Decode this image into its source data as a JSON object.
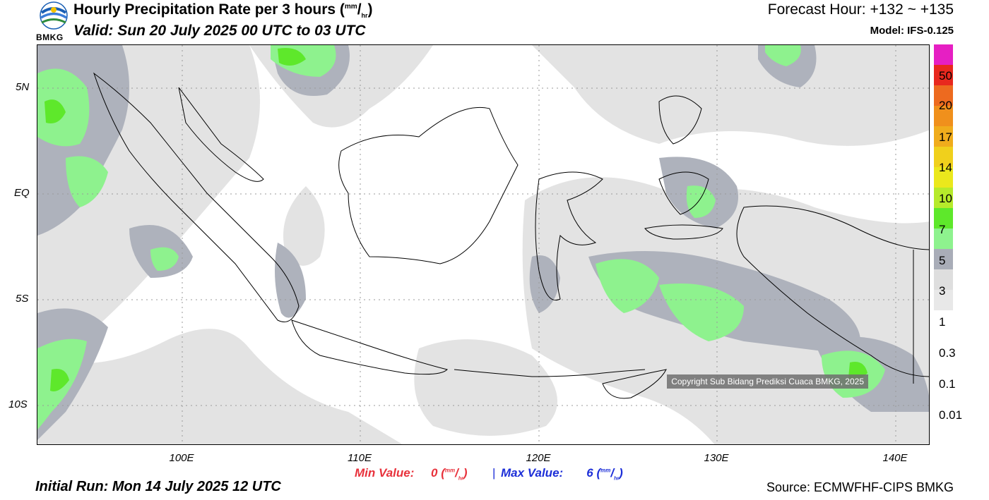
{
  "header": {
    "title_main": "Hourly Precipitation Rate per 3 hours (",
    "title_unit_num": "mm",
    "title_unit_sep": "/",
    "title_unit_den": "hr",
    "title_close": ")",
    "valid": "Valid: Sun 20 July 2025 00 UTC to 03 UTC",
    "forecast_hour": "Forecast Hour: +132 ~ +135",
    "model": "Model: IFS-0.125"
  },
  "logo": {
    "text": "BMKG",
    "icon": "bmkg-logo-icon"
  },
  "axes": {
    "lat_labels": [
      "5N",
      "EQ",
      "5S",
      "10S"
    ],
    "lon_labels": [
      "100E",
      "110E",
      "120E",
      "130E",
      "140E"
    ]
  },
  "legend": {
    "labels": [
      "50",
      "20",
      "17",
      "14",
      "10",
      "7",
      "5",
      "3",
      "1",
      "0.3",
      "0.1",
      "0.01"
    ],
    "colors": [
      "#e61fc3",
      "#e8281e",
      "#ed6a1f",
      "#f0901c",
      "#f0ac1c",
      "#f0d01c",
      "#ebe81c",
      "#b6ea2b",
      "#5ee82b",
      "#8ef28e",
      "#a9adb8",
      "#dedede",
      "#e8e8e8"
    ]
  },
  "stats": {
    "min_label": "Min Value:",
    "min_value": "0",
    "sep": "|",
    "max_label": "Max Value:",
    "max_value": "6",
    "unit_open": "(",
    "unit_num": "mm",
    "unit_sep": "/",
    "unit_den": "hr",
    "unit_close": ")"
  },
  "footer": {
    "initial_run": "Initial Run: Mon 14 July 2025 12 UTC",
    "source": "Source: ECMWFHF-CIPS BMKG",
    "copyright": "Copyright Sub Bidang Prediksi Cuaca BMKG, 2025"
  }
}
